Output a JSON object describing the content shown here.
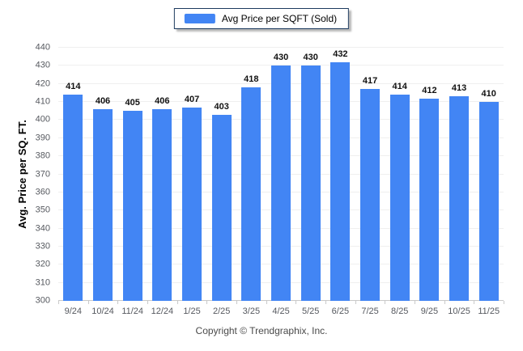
{
  "chart_data": {
    "type": "bar",
    "title": "",
    "legend": [
      "Avg Price per SQFT (Sold)"
    ],
    "legend_position": "top-center",
    "categories": [
      "9/24",
      "10/24",
      "11/24",
      "12/24",
      "1/25",
      "2/25",
      "3/25",
      "4/25",
      "5/25",
      "6/25",
      "7/25",
      "8/25",
      "9/25",
      "10/25",
      "11/25"
    ],
    "values": [
      414,
      406,
      405,
      406,
      407,
      403,
      418,
      430,
      430,
      432,
      417,
      414,
      412,
      413,
      410
    ],
    "xlabel": "",
    "ylabel": "Avg. Price per SQ. FT.",
    "ylim": [
      300,
      440
    ],
    "ytick_step": 10,
    "grid": true,
    "bar_color": "#4285F4"
  },
  "colors": {
    "bar": "#4285F4",
    "legend_border": "#1c3a5e",
    "gridline": "#efefef",
    "axis_line": "#c9c9c9",
    "tick_text": "#56595f",
    "value_text": "#111111"
  },
  "footer": {
    "copyright": "Copyright © Trendgraphix, Inc."
  }
}
